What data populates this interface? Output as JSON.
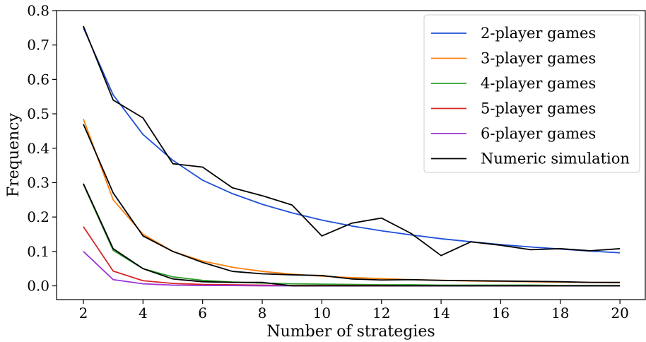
{
  "chart_data": {
    "type": "line",
    "title": "",
    "xlabel": "Number of strategies",
    "ylabel": "Frequency",
    "xlim": [
      1.1,
      20.85
    ],
    "ylim": [
      -0.04,
      0.8
    ],
    "xticks": [
      2,
      4,
      6,
      8,
      10,
      12,
      14,
      16,
      18,
      20
    ],
    "xtick_labels": [
      "2",
      "4",
      "6",
      "8",
      "10",
      "12",
      "14",
      "16",
      "18",
      "20"
    ],
    "yticks": [
      0.0,
      0.1,
      0.2,
      0.3,
      0.4,
      0.5,
      0.6,
      0.7,
      0.8
    ],
    "ytick_labels": [
      "0.0",
      "0.1",
      "0.2",
      "0.3",
      "0.4",
      "0.5",
      "0.6",
      "0.7",
      "0.8"
    ],
    "grid": false,
    "legend_position": "top-right",
    "x": [
      2,
      3,
      4,
      5,
      6,
      7,
      8,
      9,
      10,
      11,
      12,
      13,
      14,
      15,
      16,
      17,
      18,
      19,
      20
    ],
    "series": [
      {
        "name": "2-player games",
        "color": "#1f4fd8",
        "values": [
          0.75,
          0.555,
          0.44,
          0.365,
          0.307,
          0.268,
          0.237,
          0.212,
          0.191,
          0.174,
          0.16,
          0.148,
          0.137,
          0.128,
          0.12,
          0.113,
          0.107,
          0.101,
          0.096
        ]
      },
      {
        "name": "3-player games",
        "color": "#ff7f0e",
        "values": [
          0.485,
          0.25,
          0.15,
          0.1,
          0.072,
          0.054,
          0.042,
          0.034,
          0.028,
          0.024,
          0.021,
          0.018,
          0.016,
          0.014,
          0.013,
          0.012,
          0.011,
          0.01,
          0.009
        ]
      },
      {
        "name": "4-player games",
        "color": "#2ca02c",
        "values": [
          0.295,
          0.103,
          0.05,
          0.026,
          0.016,
          0.011,
          0.008,
          0.006,
          0.005,
          0.004,
          0.003,
          0.003,
          0.002,
          0.002,
          0.002,
          0.002,
          0.001,
          0.001,
          0.001
        ]
      },
      {
        "name": "5-player games",
        "color": "#d62728",
        "values": [
          0.172,
          0.043,
          0.015,
          0.007,
          0.004,
          0.003,
          0.002,
          0.001,
          0.001,
          0.001,
          0.001,
          0.0,
          0.0,
          0.0,
          0.0,
          0.0,
          0.0,
          0.0,
          0.0
        ]
      },
      {
        "name": "6-player games",
        "color": "#9b35d6",
        "values": [
          0.1,
          0.018,
          0.006,
          0.002,
          0.001,
          0.001,
          0.0,
          0.0,
          0.0,
          0.0,
          0.0,
          0.0,
          0.0,
          0.0,
          0.0,
          0.0,
          0.0,
          0.0,
          0.0
        ]
      },
      {
        "name": "Numeric simulation",
        "color": "#000000",
        "values": [
          0.755,
          0.54,
          0.488,
          0.355,
          0.345,
          0.285,
          0.262,
          0.235,
          0.145,
          0.182,
          0.197,
          0.152,
          0.088,
          0.128,
          0.118,
          0.105,
          0.108,
          0.102,
          0.108
        ]
      },
      {
        "name": "",
        "color": "#000000",
        "legend": false,
        "values": [
          0.47,
          0.27,
          0.145,
          0.1,
          0.068,
          0.042,
          0.035,
          0.032,
          0.03,
          0.02,
          0.017,
          0.018,
          0.016,
          0.015,
          0.014,
          0.013,
          0.012,
          0.01,
          0.01
        ]
      },
      {
        "name": "",
        "color": "#000000",
        "legend": false,
        "values": [
          0.297,
          0.108,
          0.05,
          0.02,
          0.012,
          0.01,
          0.01,
          0.0,
          0.0,
          0.0,
          0.0,
          0.0,
          0.0,
          0.0,
          0.0,
          0.0,
          0.0,
          0.0,
          0.0
        ]
      }
    ]
  }
}
